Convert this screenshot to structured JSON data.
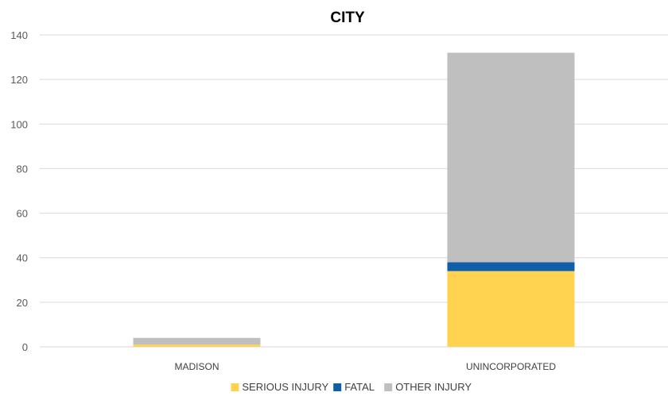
{
  "chart_data": {
    "type": "bar",
    "stacked": true,
    "title": "CITY",
    "xlabel": "",
    "ylabel": "",
    "categories": [
      "MADISON",
      "UNINCORPORATED"
    ],
    "series": [
      {
        "name": "SERIOUS INJURY",
        "color": "#FFD24F",
        "values": [
          1,
          34
        ]
      },
      {
        "name": "FATAL",
        "color": "#0F5FA8",
        "values": [
          0,
          4
        ]
      },
      {
        "name": "OTHER INJURY",
        "color": "#BFBFBF",
        "values": [
          3,
          94
        ]
      }
    ],
    "ylim": [
      0,
      140
    ],
    "yticks": [
      0,
      20,
      40,
      60,
      80,
      100,
      120,
      140
    ],
    "grid": true,
    "legend_position": "bottom"
  }
}
